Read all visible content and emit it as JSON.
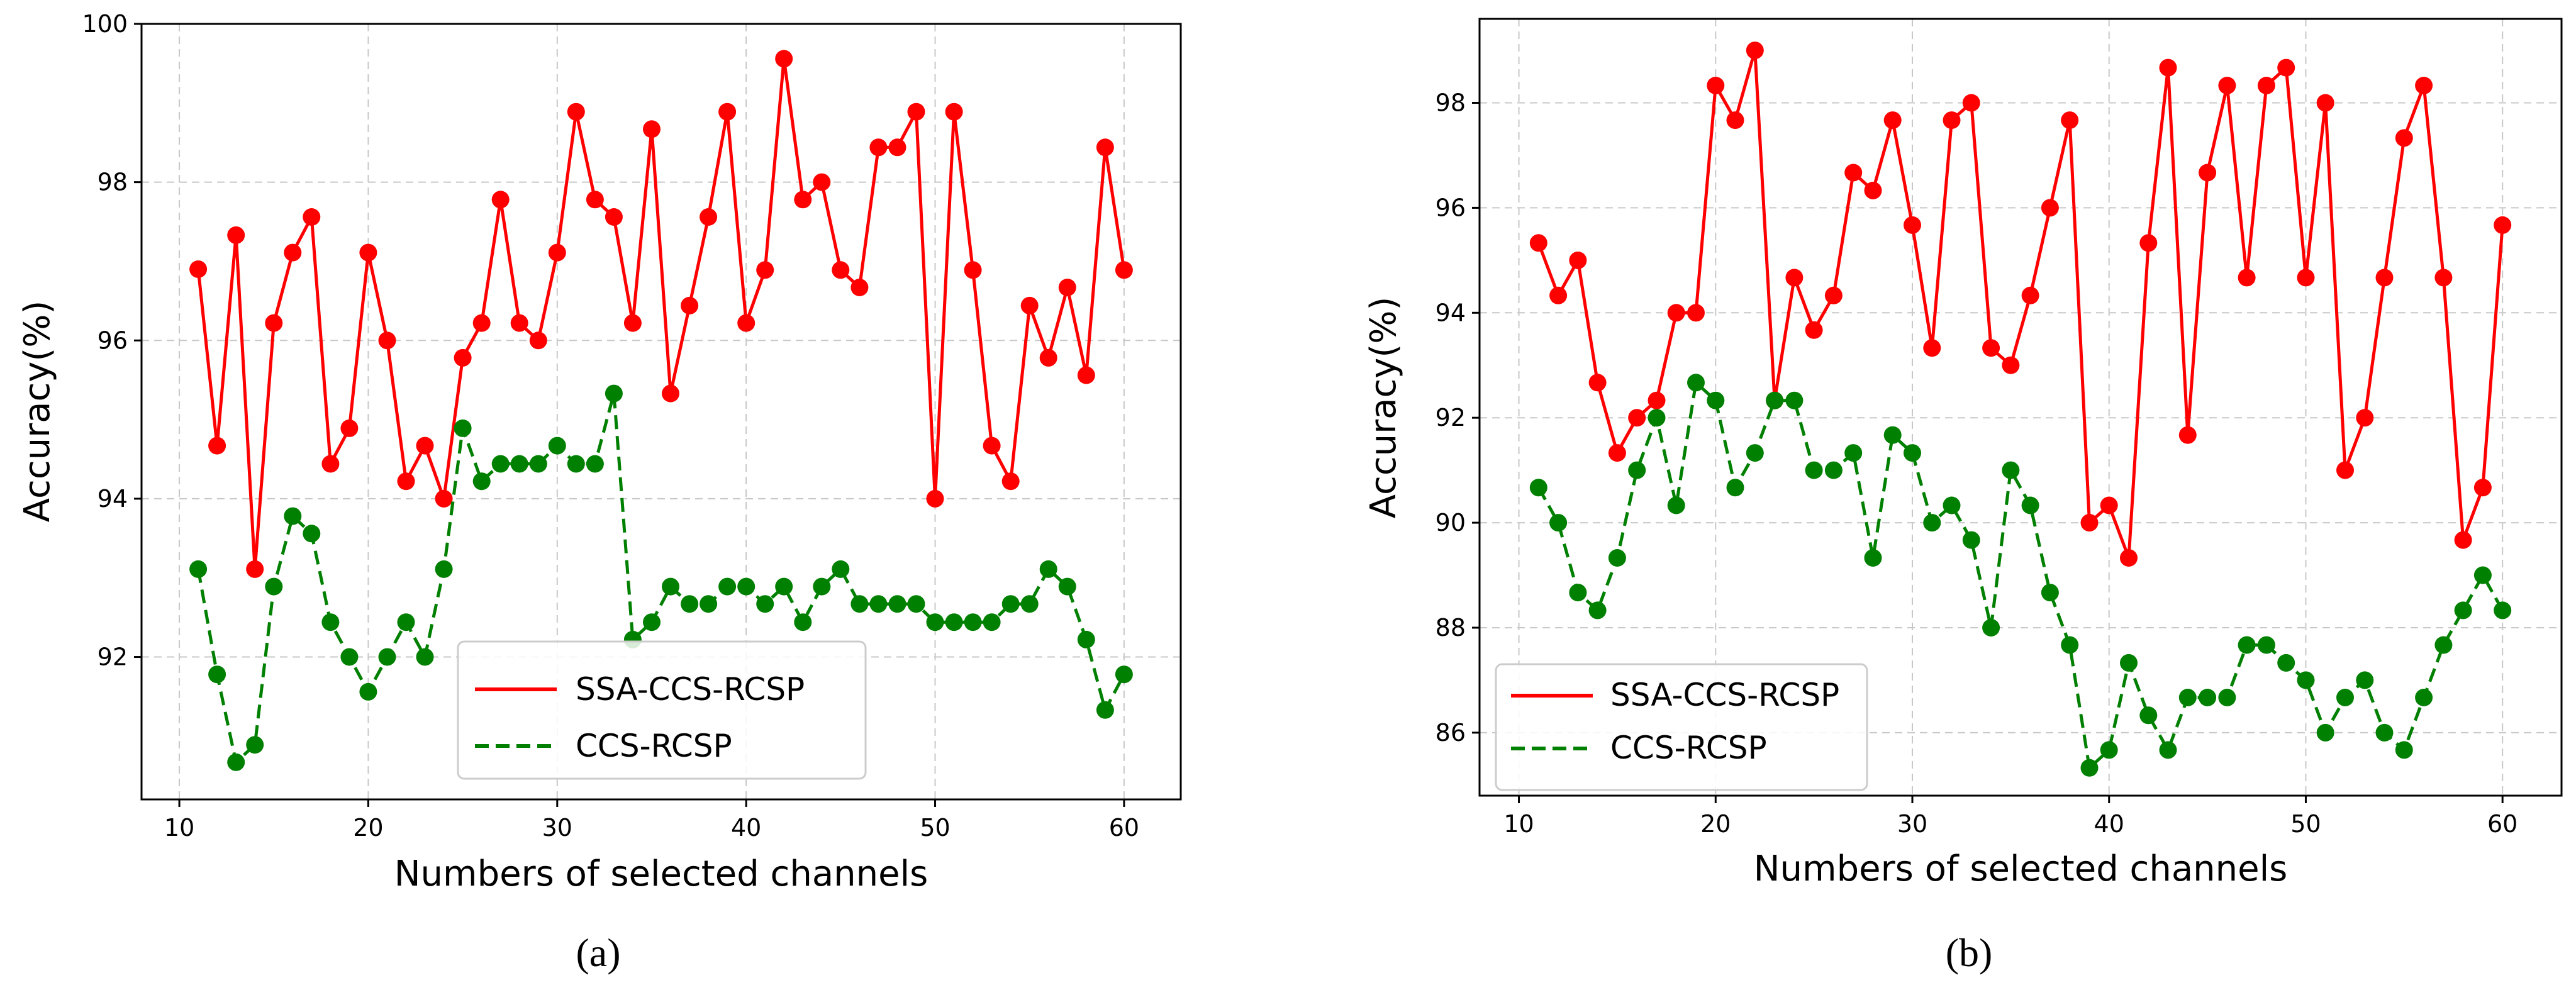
{
  "chart_data": [
    {
      "type": "line",
      "panel_label": "(a)",
      "xlabel": "Numbers of selected channels",
      "ylabel": "Accuracy(%)",
      "xlim": [
        8,
        63
      ],
      "ylim": [
        90.2,
        100
      ],
      "xticks": [
        10,
        20,
        30,
        40,
        50,
        60
      ],
      "yticks": [
        92,
        94,
        96,
        98,
        100
      ],
      "grid": true,
      "legend_position": "lower-center",
      "x": [
        11,
        12,
        13,
        14,
        15,
        16,
        17,
        18,
        19,
        20,
        21,
        22,
        23,
        24,
        25,
        26,
        27,
        28,
        29,
        30,
        31,
        32,
        33,
        34,
        35,
        36,
        37,
        38,
        39,
        40,
        41,
        42,
        43,
        44,
        45,
        46,
        47,
        48,
        49,
        50,
        51,
        52,
        53,
        54,
        55,
        56,
        57,
        58,
        59,
        60
      ],
      "series": [
        {
          "name": "SSA-CCS-RCSP",
          "color": "#ff0000",
          "style": "solid",
          "values": [
            96.9,
            94.67,
            97.33,
            93.11,
            96.22,
            97.11,
            97.56,
            94.44,
            94.89,
            97.11,
            96.0,
            94.22,
            94.67,
            94.0,
            95.78,
            96.22,
            97.78,
            96.22,
            96.0,
            97.11,
            98.89,
            97.78,
            97.56,
            96.22,
            98.67,
            95.33,
            96.44,
            97.56,
            98.89,
            96.22,
            96.89,
            99.56,
            97.78,
            98.0,
            96.89,
            96.67,
            98.44,
            98.44,
            98.89,
            94.0,
            98.89,
            96.89,
            94.67,
            94.22,
            96.44,
            95.78,
            96.67,
            95.56,
            98.44,
            96.89
          ]
        },
        {
          "name": "CCS-RCSP",
          "color": "#008000",
          "style": "dashed",
          "values": [
            93.11,
            91.78,
            90.67,
            90.89,
            92.89,
            93.78,
            93.56,
            92.44,
            92.0,
            91.56,
            92.0,
            92.44,
            92.0,
            93.11,
            94.89,
            94.22,
            94.44,
            94.44,
            94.44,
            94.67,
            94.44,
            94.44,
            95.33,
            92.22,
            92.44,
            92.89,
            92.67,
            92.67,
            92.89,
            92.89,
            92.67,
            92.89,
            92.44,
            92.89,
            93.11,
            92.67,
            92.67,
            92.67,
            92.67,
            92.44,
            92.44,
            92.44,
            92.44,
            92.67,
            92.67,
            93.11,
            92.89,
            92.22,
            91.33,
            91.78
          ]
        }
      ]
    },
    {
      "type": "line",
      "panel_label": "(b)",
      "xlabel": "Numbers of selected channels",
      "ylabel": "Accuracy(%)",
      "xlim": [
        8,
        63
      ],
      "ylim": [
        84.8,
        99.6
      ],
      "xticks": [
        10,
        20,
        30,
        40,
        50,
        60
      ],
      "yticks": [
        86,
        88,
        90,
        92,
        94,
        96,
        98
      ],
      "grid": true,
      "legend_position": "lower-left",
      "x": [
        11,
        12,
        13,
        14,
        15,
        16,
        17,
        18,
        19,
        20,
        21,
        22,
        23,
        24,
        25,
        26,
        27,
        28,
        29,
        30,
        31,
        32,
        33,
        34,
        35,
        36,
        37,
        38,
        39,
        40,
        41,
        42,
        43,
        44,
        45,
        46,
        47,
        48,
        49,
        50,
        51,
        52,
        53,
        54,
        55,
        56,
        57,
        58,
        59,
        60
      ],
      "series": [
        {
          "name": "SSA-CCS-RCSP",
          "color": "#ff0000",
          "style": "solid",
          "values": [
            95.33,
            94.33,
            95.0,
            92.67,
            91.33,
            92.0,
            92.33,
            94.0,
            94.0,
            98.33,
            97.67,
            99.0,
            92.33,
            94.67,
            93.67,
            94.33,
            96.67,
            96.33,
            97.67,
            95.67,
            93.33,
            97.67,
            98.0,
            93.33,
            93.0,
            94.33,
            96.0,
            97.67,
            90.0,
            90.33,
            89.33,
            95.33,
            98.67,
            91.67,
            96.67,
            98.33,
            94.67,
            98.33,
            98.67,
            94.67,
            98.0,
            91.0,
            92.0,
            94.67,
            97.33,
            98.33,
            94.67,
            89.67,
            90.67,
            95.67
          ]
        },
        {
          "name": "CCS-RCSP",
          "color": "#008000",
          "style": "dashed",
          "values": [
            90.67,
            90.0,
            88.67,
            88.33,
            89.33,
            91.0,
            92.0,
            90.33,
            92.67,
            92.33,
            90.67,
            91.33,
            92.33,
            92.33,
            91.0,
            91.0,
            91.33,
            89.33,
            91.67,
            91.33,
            90.0,
            90.33,
            89.67,
            88.0,
            91.0,
            90.33,
            88.67,
            87.67,
            85.33,
            85.67,
            87.33,
            86.33,
            85.67,
            86.67,
            86.67,
            86.67,
            87.67,
            87.67,
            87.33,
            87.0,
            86.0,
            86.67,
            87.0,
            86.0,
            85.67,
            86.67,
            87.67,
            88.33,
            89.0,
            88.33
          ]
        }
      ]
    }
  ]
}
